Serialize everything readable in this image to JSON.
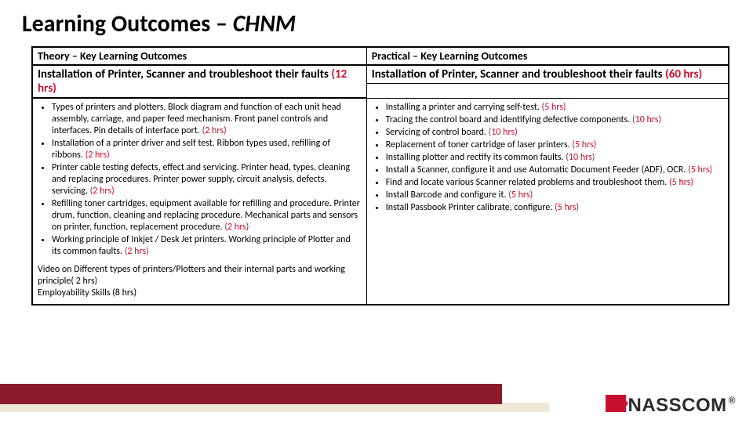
{
  "title": {
    "main": "Learning Outcomes – ",
    "em": "CHNM"
  },
  "table": {
    "left": {
      "header": "Theory – Key Learning Outcomes",
      "subheader": "Installation of Printer, Scanner and troubleshoot their faults",
      "subheader_hrs": "(12 hrs)",
      "items": [
        {
          "text": "Types of printers and plotters, Block diagram and function of each unit head assembly, carriage, and paper feed mechanism. Front panel controls and interfaces. Pin details of interface port.",
          "hrs": "(2 hrs)"
        },
        {
          "text": "Installation of a printer driver and self test. Ribbon types used, refilling of ribbons.",
          "hrs": "(2 hrs)"
        },
        {
          "text": "Printer cable testing defects, effect and servicing. Printer head, types, cleaning and replacing procedures. Printer power supply, circuit analysis, defects, servicing.",
          "hrs": "(2 hrs)"
        },
        {
          "text": "Refilling toner cartridges, equipment available for refilling and procedure. Printer drum, function, cleaning and replacing procedure. Mechanical parts and sensors on printer, function, replacement procedure.",
          "hrs": "(2 hrs)"
        },
        {
          "text": "Working principle of Inkjet / Desk Jet printers. Working principle of Plotter and its common faults.",
          "hrs": "(2 hrs)"
        }
      ],
      "footnote1": "Video on Different types of printers/Plotters  and their internal parts and working principle( 2 hrs)",
      "footnote2": "Employability Skills (8 hrs)"
    },
    "right": {
      "header": "Practical – Key Learning Outcomes",
      "subheader": "Installation of Printer, Scanner and troubleshoot their faults",
      "subheader_hrs": "(60 hrs)",
      "items": [
        {
          "text": "Installing a printer and carrying self-test.",
          "hrs": "(5 hrs)"
        },
        {
          "text": "Tracing the control board and identifying defective components.",
          "hrs": "(10 hrs)"
        },
        {
          "text": "Servicing of control board.",
          "hrs": "(10 hrs)"
        },
        {
          "text": "Replacement of toner cartridge of laser printers.",
          "hrs": "(5 hrs)"
        },
        {
          "text": "Installing plotter and rectify its common faults.",
          "hrs": "(10 hrs)"
        },
        {
          "text": "Install a Scanner, configure it and use Automatic Document Feeder (ADF), OCR.",
          "hrs": "(5 hrs)"
        },
        {
          "text": "Find and locate various Scanner related problems and troubleshoot them.",
          "hrs": "(5 hrs)"
        },
        {
          "text": "Install Barcode and configure it.",
          "hrs": "(5 hrs)"
        },
        {
          "text": "Install Passbook Printer calibrate, configure.",
          "hrs": "(5 hrs)"
        }
      ]
    }
  },
  "logo": {
    "text": "NASSCOM",
    "reg": "®"
  },
  "colors": {
    "stripe": "#8b1a2b",
    "accent": "#c8102e"
  }
}
